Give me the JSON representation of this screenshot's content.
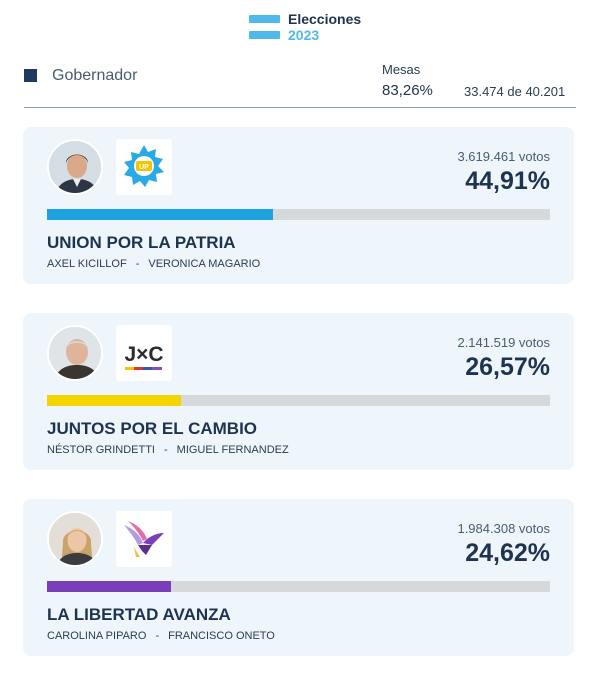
{
  "header": {
    "brand_title": "Elecciones",
    "brand_year": "2023",
    "section_label": "Gobernador",
    "mesas_label": "Mesas",
    "mesas_percent": "83,26%",
    "mesas_count": "33.474 de 40.201",
    "colors": {
      "flag": "#4fb9ea",
      "title": "#1e3350"
    }
  },
  "results": [
    {
      "party": "UNION POR LA PATRIA",
      "governor": "AXEL KICILLOF",
      "separator": "-",
      "vice": "VERONICA MAGARIO",
      "votes": "3.619.461 votos",
      "percent": "44,91%",
      "share": 0.4491,
      "bar_color": "#1fa2e0",
      "logo_icon": "union-por-la-patria-logo-icon"
    },
    {
      "party": "JUNTOS POR EL CAMBIO",
      "governor": "NÉSTOR GRINDETTI",
      "separator": "-",
      "vice": "MIGUEL FERNANDEZ",
      "votes": "2.141.519 votos",
      "percent": "26,57%",
      "share": 0.2657,
      "bar_color": "#f3d400",
      "logo_icon": "juntos-por-el-cambio-logo-icon",
      "logo_text": "J×C"
    },
    {
      "party": "LA LIBERTAD AVANZA",
      "governor": "CAROLINA PIPARO",
      "separator": "-",
      "vice": "FRANCISCO ONETO",
      "votes": "1.984.308 votos",
      "percent": "24,62%",
      "share": 0.2462,
      "bar_color": "#7a3fb8",
      "logo_icon": "la-libertad-avanza-logo-icon"
    }
  ]
}
